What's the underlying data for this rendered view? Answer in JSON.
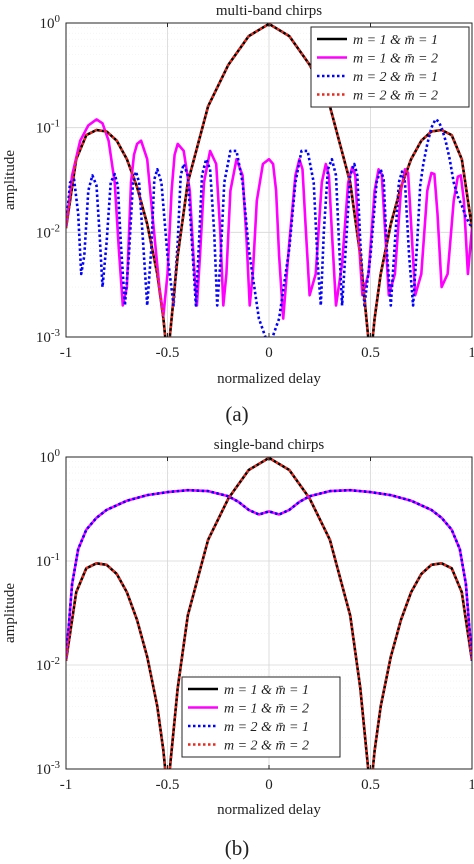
{
  "chart_data": [
    {
      "type": "line",
      "title": "multi-band chirps",
      "xlabel": "normalized delay",
      "ylabel": "amplitude",
      "xlim": [
        -1,
        1
      ],
      "ylim": [
        0.001,
        1
      ],
      "yscale": "log",
      "grid": true,
      "legend_position": "top-right",
      "x_ticks": [
        "-1",
        "-0.5",
        "0",
        "0.5",
        "1"
      ],
      "y_ticks": [
        {
          "base": "10",
          "exp": "0"
        },
        {
          "base": "10",
          "exp": "-1"
        },
        {
          "base": "10",
          "exp": "-2"
        },
        {
          "base": "10",
          "exp": "-3"
        }
      ],
      "series": [
        {
          "name": "m = 1 & m̄ = 1",
          "color": "#000000",
          "dash": "solid",
          "x": [
            -1,
            -0.95,
            -0.9,
            -0.85,
            -0.8,
            -0.75,
            -0.7,
            -0.65,
            -0.6,
            -0.55,
            -0.52,
            -0.5,
            -0.48,
            -0.45,
            -0.4,
            -0.3,
            -0.2,
            -0.1,
            0,
            0.1,
            0.2,
            0.3,
            0.4,
            0.45,
            0.48,
            0.5,
            0.52,
            0.55,
            0.6,
            0.65,
            0.7,
            0.75,
            0.8,
            0.85,
            0.9,
            0.95,
            1
          ],
          "y": [
            0.011,
            0.05,
            0.085,
            0.095,
            0.092,
            0.075,
            0.05,
            0.027,
            0.012,
            0.004,
            0.0015,
            0.0006,
            0.0015,
            0.006,
            0.03,
            0.16,
            0.4,
            0.75,
            0.98,
            0.75,
            0.4,
            0.16,
            0.03,
            0.006,
            0.0015,
            0.0006,
            0.0015,
            0.004,
            0.012,
            0.027,
            0.05,
            0.075,
            0.092,
            0.095,
            0.085,
            0.05,
            0.011
          ]
        },
        {
          "name": "m = 1 & m̄ = 2",
          "color": "#ff00ff",
          "dash": "solid",
          "x": [
            -1,
            -0.97,
            -0.93,
            -0.89,
            -0.85,
            -0.82,
            -0.79,
            -0.76,
            -0.74,
            -0.72,
            -0.7,
            -0.68,
            -0.665,
            -0.65,
            -0.63,
            -0.6,
            -0.57,
            -0.54,
            -0.52,
            -0.5,
            -0.48,
            -0.465,
            -0.45,
            -0.42,
            -0.39,
            -0.37,
            -0.355,
            -0.34,
            -0.32,
            -0.29,
            -0.26,
            -0.24,
            -0.225,
            -0.21,
            -0.19,
            -0.16,
            -0.13,
            -0.11,
            -0.095,
            -0.08,
            -0.06,
            -0.03,
            0,
            0.02,
            0.035,
            0.05,
            0.07,
            0.1,
            0.13,
            0.15,
            0.165,
            0.18,
            0.2,
            0.23,
            0.26,
            0.28,
            0.295,
            0.31,
            0.33,
            0.36,
            0.39,
            0.41,
            0.425,
            0.44,
            0.46,
            0.49,
            0.52,
            0.54,
            0.555,
            0.57,
            0.59,
            0.62,
            0.65,
            0.67,
            0.685,
            0.7,
            0.72,
            0.75,
            0.78,
            0.8,
            0.815,
            0.83,
            0.85,
            0.88,
            0.91,
            0.93,
            0.945,
            0.96,
            0.98,
            1
          ],
          "y": [
            0.011,
            0.035,
            0.075,
            0.105,
            0.12,
            0.11,
            0.075,
            0.03,
            0.007,
            0.002,
            0.003,
            0.03,
            0.055,
            0.07,
            0.075,
            0.05,
            0.012,
            0.003,
            0.0016,
            0.004,
            0.025,
            0.055,
            0.07,
            0.06,
            0.025,
            0.005,
            0.002,
            0.006,
            0.03,
            0.06,
            0.045,
            0.01,
            0.002,
            0.004,
            0.025,
            0.05,
            0.035,
            0.008,
            0.002,
            0.004,
            0.02,
            0.045,
            0.05,
            0.045,
            0.025,
            0.006,
            0.0015,
            0.008,
            0.035,
            0.05,
            0.04,
            0.012,
            0.0025,
            0.004,
            0.03,
            0.045,
            0.035,
            0.01,
            0.002,
            0.005,
            0.03,
            0.042,
            0.035,
            0.01,
            0.0025,
            0.004,
            0.025,
            0.04,
            0.036,
            0.012,
            0.0025,
            0.004,
            0.025,
            0.04,
            0.037,
            0.012,
            0.0025,
            0.004,
            0.025,
            0.037,
            0.036,
            0.015,
            0.003,
            0.004,
            0.02,
            0.034,
            0.035,
            0.02,
            0.004,
            0.011
          ]
        },
        {
          "name": "m = 2 & m̄ = 1",
          "color": "#0000ff",
          "dash": "dotted",
          "x": [
            -1,
            -0.98,
            -0.96,
            -0.94,
            -0.925,
            -0.91,
            -0.89,
            -0.87,
            -0.85,
            -0.835,
            -0.82,
            -0.8,
            -0.78,
            -0.76,
            -0.745,
            -0.73,
            -0.71,
            -0.69,
            -0.67,
            -0.655,
            -0.64,
            -0.62,
            -0.6,
            -0.58,
            -0.565,
            -0.55,
            -0.53,
            -0.5,
            -0.47,
            -0.45,
            -0.435,
            -0.42,
            -0.4,
            -0.38,
            -0.36,
            -0.345,
            -0.33,
            -0.31,
            -0.29,
            -0.27,
            -0.255,
            -0.24,
            -0.22,
            -0.19,
            -0.16,
            -0.13,
            -0.1,
            -0.05,
            0,
            0.05,
            0.1,
            0.13,
            0.16,
            0.19,
            0.22,
            0.24,
            0.255,
            0.27,
            0.29,
            0.31,
            0.33,
            0.345,
            0.36,
            0.38,
            0.4,
            0.42,
            0.435,
            0.45,
            0.47,
            0.5,
            0.53,
            0.55,
            0.565,
            0.58,
            0.6,
            0.62,
            0.64,
            0.655,
            0.67,
            0.69,
            0.71,
            0.73,
            0.745,
            0.76,
            0.78,
            0.8,
            0.82,
            0.835,
            0.85,
            0.87,
            0.89,
            0.91,
            0.93,
            0.95,
            0.97,
            1
          ],
          "y": [
            0.011,
            0.03,
            0.032,
            0.015,
            0.004,
            0.006,
            0.025,
            0.035,
            0.028,
            0.01,
            0.003,
            0.008,
            0.03,
            0.036,
            0.028,
            0.008,
            0.002,
            0.006,
            0.03,
            0.038,
            0.03,
            0.008,
            0.002,
            0.007,
            0.032,
            0.04,
            0.03,
            0.006,
            0.002,
            0.008,
            0.035,
            0.045,
            0.035,
            0.008,
            0.002,
            0.008,
            0.035,
            0.05,
            0.04,
            0.01,
            0.002,
            0.005,
            0.03,
            0.06,
            0.06,
            0.03,
            0.007,
            0.0015,
            0.0008,
            0.0015,
            0.007,
            0.03,
            0.06,
            0.06,
            0.03,
            0.005,
            0.002,
            0.01,
            0.04,
            0.05,
            0.035,
            0.008,
            0.002,
            0.008,
            0.035,
            0.045,
            0.035,
            0.008,
            0.002,
            0.006,
            0.03,
            0.04,
            0.032,
            0.007,
            0.002,
            0.008,
            0.03,
            0.038,
            0.03,
            0.006,
            0.002,
            0.008,
            0.028,
            0.045,
            0.07,
            0.1,
            0.12,
            0.115,
            0.1,
            0.075,
            0.05,
            0.03,
            0.022,
            0.018,
            0.014,
            0.011
          ]
        },
        {
          "name": "m = 2 & m̄ = 2",
          "color": "#e8291c",
          "dash": "dotted",
          "x": [
            -1,
            -0.95,
            -0.9,
            -0.85,
            -0.8,
            -0.75,
            -0.7,
            -0.65,
            -0.6,
            -0.55,
            -0.52,
            -0.5,
            -0.48,
            -0.45,
            -0.4,
            -0.3,
            -0.2,
            -0.1,
            0,
            0.1,
            0.2,
            0.3,
            0.4,
            0.45,
            0.48,
            0.5,
            0.52,
            0.55,
            0.6,
            0.65,
            0.7,
            0.75,
            0.8,
            0.85,
            0.9,
            0.95,
            1
          ],
          "y": [
            0.011,
            0.05,
            0.085,
            0.095,
            0.092,
            0.075,
            0.05,
            0.027,
            0.012,
            0.004,
            0.0015,
            0.0006,
            0.0015,
            0.006,
            0.03,
            0.16,
            0.4,
            0.75,
            0.98,
            0.75,
            0.4,
            0.16,
            0.03,
            0.006,
            0.0015,
            0.0006,
            0.0015,
            0.004,
            0.012,
            0.027,
            0.05,
            0.075,
            0.092,
            0.095,
            0.085,
            0.05,
            0.011
          ]
        }
      ]
    },
    {
      "type": "line",
      "title": "single-band chirps",
      "xlabel": "normalized delay",
      "ylabel": "amplitude",
      "xlim": [
        -1,
        1
      ],
      "ylim": [
        0.001,
        1
      ],
      "yscale": "log",
      "grid": true,
      "legend_position": "bottom-center",
      "x_ticks": [
        "-1",
        "-0.5",
        "0",
        "0.5",
        "1"
      ],
      "y_ticks": [
        {
          "base": "10",
          "exp": "0"
        },
        {
          "base": "10",
          "exp": "-1"
        },
        {
          "base": "10",
          "exp": "-2"
        },
        {
          "base": "10",
          "exp": "-3"
        }
      ],
      "series": [
        {
          "name": "m = 1 & m̄ = 1",
          "color": "#000000",
          "dash": "solid",
          "x": [
            -1,
            -0.95,
            -0.9,
            -0.85,
            -0.8,
            -0.75,
            -0.7,
            -0.65,
            -0.6,
            -0.55,
            -0.52,
            -0.5,
            -0.48,
            -0.45,
            -0.4,
            -0.3,
            -0.2,
            -0.1,
            0,
            0.1,
            0.2,
            0.3,
            0.4,
            0.45,
            0.48,
            0.5,
            0.52,
            0.55,
            0.6,
            0.65,
            0.7,
            0.75,
            0.8,
            0.85,
            0.9,
            0.95,
            1
          ],
          "y": [
            0.011,
            0.05,
            0.085,
            0.095,
            0.092,
            0.075,
            0.05,
            0.027,
            0.012,
            0.004,
            0.0015,
            0.0006,
            0.0015,
            0.006,
            0.03,
            0.16,
            0.4,
            0.75,
            0.98,
            0.75,
            0.4,
            0.16,
            0.03,
            0.006,
            0.0015,
            0.0006,
            0.0015,
            0.004,
            0.012,
            0.027,
            0.05,
            0.075,
            0.092,
            0.095,
            0.085,
            0.05,
            0.011
          ]
        },
        {
          "name": "m = 1 & m̄ = 2",
          "color": "#ff00ff",
          "dash": "solid",
          "x": [
            -1,
            -0.97,
            -0.94,
            -0.9,
            -0.85,
            -0.8,
            -0.7,
            -0.6,
            -0.5,
            -0.4,
            -0.3,
            -0.2,
            -0.15,
            -0.1,
            -0.05,
            0,
            0.05,
            0.1,
            0.15,
            0.2,
            0.3,
            0.4,
            0.5,
            0.6,
            0.7,
            0.8,
            0.85,
            0.9,
            0.94,
            0.97,
            1
          ],
          "y": [
            0.011,
            0.06,
            0.13,
            0.2,
            0.26,
            0.31,
            0.38,
            0.43,
            0.46,
            0.48,
            0.47,
            0.42,
            0.37,
            0.31,
            0.28,
            0.3,
            0.28,
            0.31,
            0.37,
            0.42,
            0.47,
            0.48,
            0.46,
            0.43,
            0.38,
            0.31,
            0.26,
            0.2,
            0.13,
            0.06,
            0.011
          ]
        },
        {
          "name": "m = 2 & m̄ = 1",
          "color": "#0000ff",
          "dash": "dotted",
          "x": [
            -1,
            -0.97,
            -0.94,
            -0.9,
            -0.85,
            -0.8,
            -0.7,
            -0.6,
            -0.5,
            -0.4,
            -0.3,
            -0.2,
            -0.15,
            -0.1,
            -0.05,
            0,
            0.05,
            0.1,
            0.15,
            0.2,
            0.3,
            0.4,
            0.5,
            0.6,
            0.7,
            0.8,
            0.85,
            0.9,
            0.94,
            0.97,
            1
          ],
          "y": [
            0.011,
            0.06,
            0.13,
            0.2,
            0.26,
            0.31,
            0.38,
            0.43,
            0.46,
            0.48,
            0.47,
            0.42,
            0.37,
            0.31,
            0.28,
            0.3,
            0.28,
            0.31,
            0.37,
            0.42,
            0.47,
            0.48,
            0.46,
            0.43,
            0.38,
            0.31,
            0.26,
            0.2,
            0.13,
            0.06,
            0.011
          ]
        },
        {
          "name": "m = 2 & m̄ = 2",
          "color": "#e8291c",
          "dash": "dotted",
          "x": [
            -1,
            -0.95,
            -0.9,
            -0.85,
            -0.8,
            -0.75,
            -0.7,
            -0.65,
            -0.6,
            -0.55,
            -0.52,
            -0.5,
            -0.48,
            -0.45,
            -0.4,
            -0.3,
            -0.2,
            -0.1,
            0,
            0.1,
            0.2,
            0.3,
            0.4,
            0.45,
            0.48,
            0.5,
            0.52,
            0.55,
            0.6,
            0.65,
            0.7,
            0.75,
            0.8,
            0.85,
            0.9,
            0.95,
            1
          ],
          "y": [
            0.011,
            0.05,
            0.085,
            0.095,
            0.092,
            0.075,
            0.05,
            0.027,
            0.012,
            0.004,
            0.0015,
            0.0006,
            0.0015,
            0.006,
            0.03,
            0.16,
            0.4,
            0.75,
            0.98,
            0.75,
            0.4,
            0.16,
            0.03,
            0.006,
            0.0015,
            0.0006,
            0.0015,
            0.004,
            0.012,
            0.027,
            0.05,
            0.075,
            0.092,
            0.095,
            0.085,
            0.05,
            0.011
          ]
        }
      ]
    }
  ],
  "captions": [
    "(a)",
    "(b)"
  ]
}
